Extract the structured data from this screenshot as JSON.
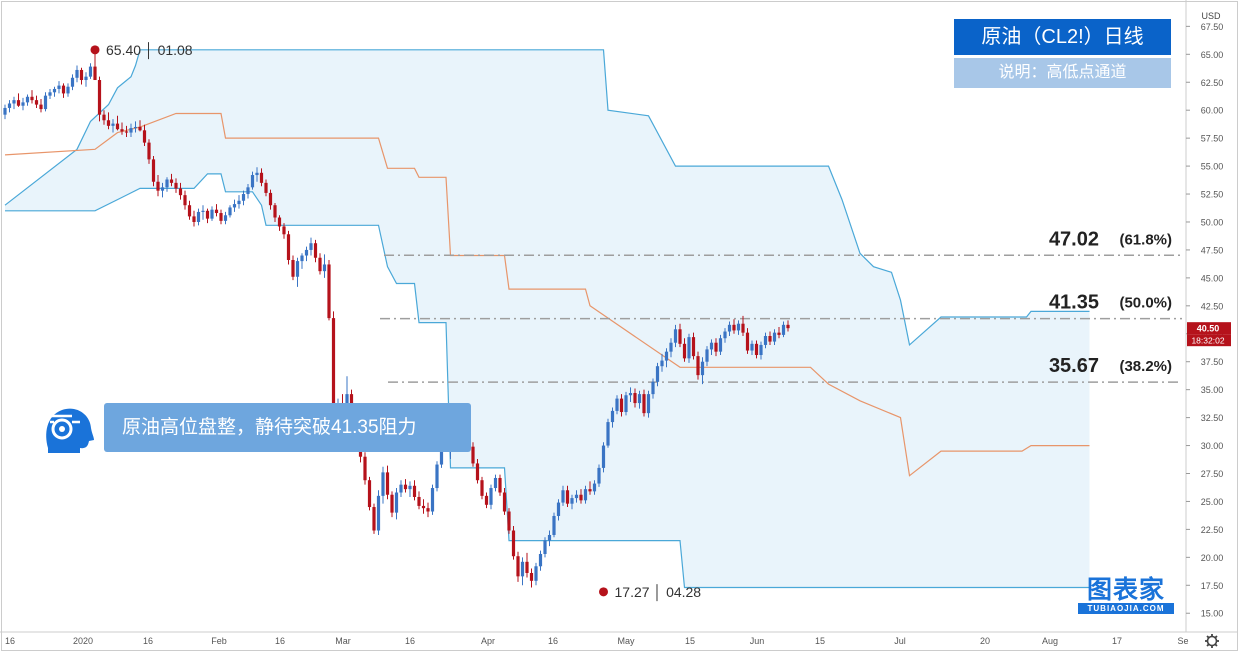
{
  "chart_data": {
    "type": "candlestick",
    "title": "原油（CL2!）日线",
    "subtitle": "说明：高低点通道",
    "currency": "USD",
    "ylim": [
      13.5,
      69.5
    ],
    "y_ticks": [
      "67.50",
      "65.00",
      "62.50",
      "60.00",
      "57.50",
      "55.00",
      "52.50",
      "50.00",
      "47.50",
      "45.00",
      "42.50",
      "40.00",
      "37.50",
      "35.00",
      "32.50",
      "30.00",
      "27.50",
      "25.00",
      "22.50",
      "20.00",
      "17.50",
      "15.00"
    ],
    "x_ticks": [
      "16",
      "2020",
      "16",
      "Feb",
      "16",
      "Mar",
      "16",
      "Apr",
      "16",
      "May",
      "15",
      "Jun",
      "15",
      "Jul",
      "20",
      "Aug",
      "17",
      "Se"
    ],
    "fib_levels": [
      {
        "price": 47.02,
        "label": "47.02",
        "pct": "(61.8%)"
      },
      {
        "price": 41.35,
        "label": "41.35",
        "pct": "(50.0%)"
      },
      {
        "price": 35.67,
        "label": "35.67",
        "pct": "(38.2%)"
      }
    ],
    "high_marker": {
      "price": 65.4,
      "label": "65.40 │ 01.08"
    },
    "low_marker": {
      "price": 17.27,
      "label": "17.27 │ 04.28"
    },
    "last_price": "40.50",
    "countdown": "18:32:02",
    "comment": "原油高位盘整，静待突破41.35阻力",
    "brand": {
      "name": "图表家",
      "domain": "TUBIAOJIA.COM"
    },
    "colors": {
      "up": "#3a74c4",
      "down": "#b5121b",
      "channel": "#4aa8d8",
      "mid": "#e8956a",
      "fill": "#e9f4fb",
      "fib": "#9e9e9e"
    },
    "upper_band": [
      [
        0,
        51.5
      ],
      [
        16,
        56.5
      ],
      [
        19,
        59
      ],
      [
        23,
        60.5
      ],
      [
        25,
        62
      ],
      [
        28,
        63
      ],
      [
        29,
        64
      ],
      [
        30,
        65.4
      ],
      [
        133,
        65.4
      ],
      [
        134,
        60
      ],
      [
        143,
        59.5
      ],
      [
        149,
        55
      ],
      [
        183,
        55
      ],
      [
        186,
        52
      ],
      [
        190,
        47.2
      ],
      [
        193,
        46
      ],
      [
        197,
        45.5
      ],
      [
        199,
        43
      ],
      [
        201,
        39
      ],
      [
        208,
        41.5
      ],
      [
        213,
        41.5
      ],
      [
        227,
        41.5
      ],
      [
        228,
        42
      ],
      [
        241,
        42
      ]
    ],
    "lower_band": [
      [
        0,
        51
      ],
      [
        20,
        51
      ],
      [
        25,
        52
      ],
      [
        30,
        53
      ],
      [
        42,
        53
      ],
      [
        45,
        54.3
      ],
      [
        48,
        54.3
      ],
      [
        49,
        52.7
      ],
      [
        55,
        52.7
      ],
      [
        57,
        51.5
      ],
      [
        58,
        49.7
      ],
      [
        83,
        49.7
      ],
      [
        85,
        46
      ],
      [
        87,
        44.5
      ],
      [
        91,
        44.5
      ],
      [
        92,
        41
      ],
      [
        98,
        41
      ],
      [
        99,
        28
      ],
      [
        111,
        28
      ],
      [
        112,
        21.5
      ],
      [
        150,
        21.5
      ],
      [
        151,
        17.3
      ],
      [
        241,
        17.3
      ]
    ],
    "mid_band": [
      [
        0,
        56
      ],
      [
        20,
        56.5
      ],
      [
        25,
        58
      ],
      [
        30,
        58.5
      ],
      [
        38,
        59.7
      ],
      [
        48,
        59.7
      ],
      [
        49,
        57.5
      ],
      [
        83,
        57.5
      ],
      [
        85,
        54.8
      ],
      [
        91,
        54.8
      ],
      [
        92,
        54
      ],
      [
        98,
        54
      ],
      [
        99,
        47
      ],
      [
        111,
        47
      ],
      [
        112,
        44
      ],
      [
        129,
        44
      ],
      [
        130,
        42.5
      ],
      [
        150,
        37
      ],
      [
        179,
        37
      ],
      [
        183,
        35.5
      ],
      [
        190,
        34
      ],
      [
        199,
        32.5
      ],
      [
        201,
        27.3
      ],
      [
        208,
        29.5
      ],
      [
        226,
        29.5
      ],
      [
        228,
        30
      ],
      [
        241,
        30
      ]
    ],
    "candles": [
      [
        59.6,
        60.5,
        59.2,
        60.2
      ],
      [
        60.2,
        60.9,
        59.8,
        60.6
      ],
      [
        60.6,
        61.2,
        60.1,
        60.9
      ],
      [
        60.9,
        61.5,
        60.3,
        60.4
      ],
      [
        60.4,
        61.1,
        60.0,
        60.7
      ],
      [
        60.7,
        61.4,
        60.4,
        61.2
      ],
      [
        61.2,
        61.8,
        60.6,
        60.9
      ],
      [
        60.9,
        61.3,
        60.2,
        60.5
      ],
      [
        60.5,
        61.0,
        59.8,
        60.1
      ],
      [
        60.1,
        61.6,
        59.9,
        61.3
      ],
      [
        61.3,
        61.9,
        61.0,
        61.6
      ],
      [
        61.6,
        62.1,
        61.2,
        61.9
      ],
      [
        61.9,
        62.6,
        61.5,
        62.2
      ],
      [
        62.2,
        62.4,
        61.1,
        61.5
      ],
      [
        61.5,
        62.4,
        61.2,
        62.1
      ],
      [
        62.1,
        63.2,
        61.8,
        62.9
      ],
      [
        62.9,
        64.0,
        62.5,
        63.6
      ],
      [
        63.6,
        63.8,
        62.3,
        62.7
      ],
      [
        62.7,
        63.4,
        62.1,
        63.0
      ],
      [
        63.0,
        64.2,
        62.8,
        63.9
      ],
      [
        63.9,
        65.4,
        63.0,
        62.7
      ],
      [
        62.7,
        63.0,
        59.0,
        59.6
      ],
      [
        59.6,
        60.0,
        58.7,
        59.1
      ],
      [
        59.1,
        59.8,
        58.3,
        58.6
      ],
      [
        58.6,
        59.2,
        58.0,
        58.8
      ],
      [
        58.8,
        59.5,
        58.2,
        58.3
      ],
      [
        58.3,
        58.9,
        57.8,
        58.1
      ],
      [
        58.1,
        58.6,
        57.6,
        58.0
      ],
      [
        58.0,
        58.8,
        57.6,
        58.4
      ],
      [
        58.4,
        59.0,
        58.0,
        58.5
      ],
      [
        58.5,
        59.1,
        58.1,
        58.2
      ],
      [
        58.2,
        58.7,
        56.8,
        57.1
      ],
      [
        57.1,
        57.4,
        55.2,
        55.6
      ],
      [
        55.6,
        55.9,
        53.2,
        53.6
      ],
      [
        53.6,
        54.2,
        52.3,
        52.8
      ],
      [
        52.8,
        53.5,
        52.2,
        53.1
      ],
      [
        53.1,
        54.0,
        52.7,
        53.8
      ],
      [
        53.8,
        54.3,
        53.2,
        53.5
      ],
      [
        53.5,
        53.9,
        52.6,
        53.0
      ],
      [
        53.0,
        53.5,
        52.0,
        52.4
      ],
      [
        52.4,
        52.8,
        51.1,
        51.5
      ],
      [
        51.5,
        51.9,
        50.2,
        50.5
      ],
      [
        50.5,
        51.0,
        49.6,
        50.0
      ],
      [
        50.0,
        51.2,
        49.7,
        50.9
      ],
      [
        50.9,
        51.5,
        50.2,
        51.0
      ],
      [
        51.0,
        51.2,
        49.9,
        50.3
      ],
      [
        50.3,
        51.4,
        50.1,
        51.1
      ],
      [
        51.1,
        51.6,
        50.5,
        50.8
      ],
      [
        50.8,
        51.1,
        49.8,
        50.1
      ],
      [
        50.1,
        50.9,
        49.8,
        50.6
      ],
      [
        50.6,
        51.5,
        50.4,
        51.3
      ],
      [
        51.3,
        52.0,
        50.9,
        51.6
      ],
      [
        51.6,
        52.4,
        51.2,
        51.9
      ],
      [
        51.9,
        52.8,
        51.5,
        52.5
      ],
      [
        52.5,
        53.4,
        52.1,
        53.1
      ],
      [
        53.1,
        54.5,
        52.9,
        54.2
      ],
      [
        54.2,
        54.9,
        53.6,
        54.4
      ],
      [
        54.4,
        54.8,
        53.2,
        53.5
      ],
      [
        53.5,
        53.8,
        52.3,
        52.6
      ],
      [
        52.6,
        52.9,
        51.1,
        51.5
      ],
      [
        51.5,
        51.7,
        50.0,
        50.4
      ],
      [
        50.4,
        50.6,
        49.2,
        49.6
      ],
      [
        49.6,
        49.9,
        48.5,
        48.9
      ],
      [
        48.9,
        49.2,
        46.2,
        46.6
      ],
      [
        46.6,
        47.0,
        44.8,
        45.1
      ],
      [
        45.1,
        46.8,
        44.2,
        46.5
      ],
      [
        46.5,
        47.2,
        45.8,
        47.0
      ],
      [
        47.0,
        47.8,
        46.5,
        47.5
      ],
      [
        47.5,
        48.6,
        47.0,
        48.1
      ],
      [
        48.1,
        48.4,
        46.4,
        46.8
      ],
      [
        46.8,
        47.2,
        45.3,
        45.6
      ],
      [
        45.6,
        47.1,
        45.0,
        46.2
      ],
      [
        46.2,
        46.6,
        41.2,
        41.4
      ],
      [
        41.4,
        42.0,
        31.0,
        31.4
      ],
      [
        31.4,
        34.2,
        29.6,
        33.8
      ],
      [
        33.8,
        34.6,
        31.2,
        31.6
      ],
      [
        31.6,
        36.2,
        31.0,
        34.6
      ],
      [
        34.6,
        35.0,
        32.5,
        33.0
      ],
      [
        33.0,
        33.6,
        31.8,
        32.1
      ],
      [
        32.1,
        32.5,
        28.5,
        29.0
      ],
      [
        29.0,
        29.4,
        26.5,
        26.9
      ],
      [
        26.9,
        27.2,
        24.2,
        24.5
      ],
      [
        24.5,
        24.8,
        22.1,
        22.4
      ],
      [
        22.4,
        26.0,
        22.0,
        25.5
      ],
      [
        25.5,
        28.1,
        24.8,
        27.6
      ],
      [
        27.6,
        28.2,
        25.2,
        25.6
      ],
      [
        25.6,
        25.9,
        23.6,
        24.0
      ],
      [
        24.0,
        26.2,
        23.4,
        25.8
      ],
      [
        25.8,
        26.9,
        25.4,
        26.5
      ],
      [
        26.5,
        27.0,
        25.8,
        26.1
      ],
      [
        26.1,
        26.8,
        25.4,
        26.4
      ],
      [
        26.4,
        26.9,
        25.1,
        25.4
      ],
      [
        25.4,
        25.9,
        24.3,
        24.6
      ],
      [
        24.6,
        25.2,
        23.9,
        24.4
      ],
      [
        24.4,
        24.9,
        23.6,
        24.1
      ],
      [
        24.1,
        26.5,
        23.8,
        26.2
      ],
      [
        26.2,
        28.6,
        25.9,
        28.3
      ],
      [
        28.3,
        30.9,
        28.0,
        30.6
      ],
      [
        30.6,
        31.1,
        29.5,
        29.8
      ],
      [
        29.8,
        30.4,
        28.8,
        30.1
      ],
      [
        30.1,
        31.0,
        29.7,
        30.7
      ],
      [
        30.7,
        31.2,
        29.8,
        30.2
      ],
      [
        30.2,
        31.5,
        29.9,
        31.2
      ],
      [
        31.2,
        31.6,
        29.6,
        29.9
      ],
      [
        29.9,
        30.3,
        28.1,
        28.4
      ],
      [
        28.4,
        28.8,
        26.6,
        26.9
      ],
      [
        26.9,
        27.2,
        25.2,
        25.5
      ],
      [
        25.5,
        25.8,
        24.4,
        24.7
      ],
      [
        24.7,
        26.5,
        24.3,
        26.2
      ],
      [
        26.2,
        27.4,
        25.9,
        27.1
      ],
      [
        27.1,
        27.4,
        25.5,
        25.8
      ],
      [
        25.8,
        26.2,
        23.8,
        24.1
      ],
      [
        24.1,
        24.4,
        22.1,
        22.4
      ],
      [
        22.4,
        22.8,
        19.8,
        20.1
      ],
      [
        20.1,
        20.5,
        17.8,
        18.3
      ],
      [
        18.3,
        20.0,
        17.5,
        19.6
      ],
      [
        19.6,
        20.4,
        18.2,
        18.6
      ],
      [
        18.6,
        19.0,
        17.3,
        17.9
      ],
      [
        17.9,
        19.5,
        17.5,
        19.2
      ],
      [
        19.2,
        20.6,
        18.8,
        20.3
      ],
      [
        20.3,
        21.8,
        20.0,
        21.5
      ],
      [
        21.5,
        22.4,
        21.0,
        22.0
      ],
      [
        22.0,
        24.0,
        21.8,
        23.7
      ],
      [
        23.7,
        25.2,
        23.3,
        24.9
      ],
      [
        24.9,
        26.4,
        24.6,
        26.0
      ],
      [
        26.0,
        26.4,
        24.5,
        24.8
      ],
      [
        24.8,
        25.6,
        24.3,
        25.3
      ],
      [
        25.3,
        26.0,
        24.9,
        25.6
      ],
      [
        25.6,
        26.1,
        24.8,
        25.1
      ],
      [
        25.1,
        26.4,
        24.8,
        26.1
      ],
      [
        26.1,
        26.8,
        25.6,
        25.9
      ],
      [
        25.9,
        26.9,
        25.6,
        26.6
      ],
      [
        26.6,
        28.3,
        26.3,
        28.0
      ],
      [
        28.0,
        30.3,
        27.6,
        30.0
      ],
      [
        30.0,
        32.4,
        29.8,
        32.1
      ],
      [
        32.1,
        33.4,
        31.6,
        33.1
      ],
      [
        33.1,
        34.5,
        32.8,
        34.2
      ],
      [
        34.2,
        34.6,
        32.6,
        33.0
      ],
      [
        33.0,
        34.8,
        32.7,
        34.5
      ],
      [
        34.5,
        35.2,
        33.9,
        34.7
      ],
      [
        34.7,
        35.1,
        33.4,
        33.8
      ],
      [
        33.8,
        34.9,
        33.3,
        34.6
      ],
      [
        34.6,
        35.0,
        32.6,
        32.9
      ],
      [
        32.9,
        34.9,
        32.5,
        34.6
      ],
      [
        34.6,
        36.0,
        34.2,
        35.7
      ],
      [
        35.7,
        37.4,
        35.3,
        37.1
      ],
      [
        37.1,
        38.2,
        36.6,
        37.6
      ],
      [
        37.6,
        38.7,
        37.0,
        38.4
      ],
      [
        38.4,
        39.6,
        37.9,
        39.2
      ],
      [
        39.2,
        40.8,
        38.8,
        40.4
      ],
      [
        40.4,
        40.9,
        38.8,
        39.1
      ],
      [
        39.1,
        39.6,
        37.5,
        37.8
      ],
      [
        37.8,
        40.0,
        37.4,
        39.7
      ],
      [
        39.7,
        40.1,
        37.7,
        38.0
      ],
      [
        38.0,
        38.4,
        35.9,
        36.3
      ],
      [
        36.3,
        37.9,
        35.5,
        37.5
      ],
      [
        37.5,
        38.9,
        37.1,
        38.6
      ],
      [
        38.6,
        39.5,
        38.1,
        39.2
      ],
      [
        39.2,
        39.6,
        38.0,
        38.4
      ],
      [
        38.4,
        39.9,
        38.1,
        39.6
      ],
      [
        39.6,
        40.5,
        39.2,
        40.2
      ],
      [
        40.2,
        41.1,
        39.8,
        40.8
      ],
      [
        40.8,
        41.3,
        40.0,
        40.3
      ],
      [
        40.3,
        41.2,
        39.9,
        40.9
      ],
      [
        40.9,
        41.6,
        39.8,
        40.1
      ],
      [
        40.1,
        40.5,
        38.2,
        38.5
      ],
      [
        38.5,
        39.4,
        38.1,
        39.1
      ],
      [
        39.1,
        39.4,
        37.8,
        38.1
      ],
      [
        38.1,
        39.3,
        37.7,
        39.0
      ],
      [
        39.0,
        40.1,
        38.7,
        39.8
      ],
      [
        39.8,
        40.2,
        39.0,
        39.3
      ],
      [
        39.3,
        40.4,
        39.0,
        40.1
      ],
      [
        40.1,
        40.6,
        39.6,
        39.9
      ],
      [
        39.9,
        41.1,
        39.7,
        40.8
      ],
      [
        40.8,
        41.2,
        40.2,
        40.5
      ]
    ]
  }
}
